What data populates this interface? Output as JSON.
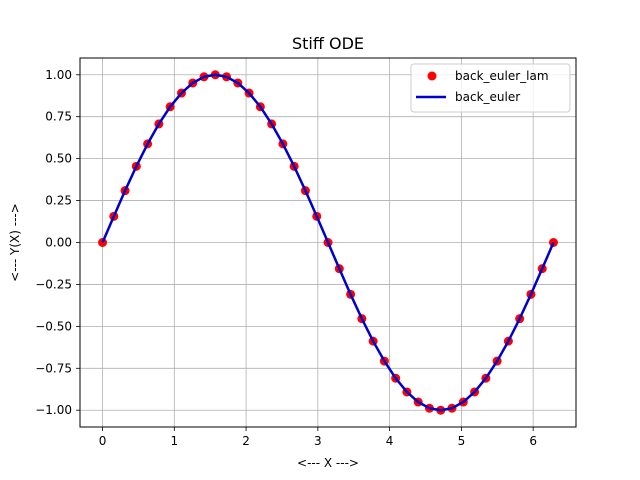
{
  "chart_data": {
    "type": "line",
    "title": "Stiff ODE",
    "xlabel": "<--- X --->",
    "ylabel": "<--- Y(X) --->",
    "xlim": [
      -0.314,
      6.597
    ],
    "ylim": [
      -1.1,
      1.1
    ],
    "xticks": [
      0,
      1,
      2,
      3,
      4,
      5,
      6
    ],
    "xtick_labels": [
      "0",
      "1",
      "2",
      "3",
      "4",
      "5",
      "6"
    ],
    "yticks": [
      -1.0,
      -0.75,
      -0.5,
      -0.25,
      0.0,
      0.25,
      0.5,
      0.75,
      1.0
    ],
    "ytick_labels": [
      "−1.00",
      "−0.75",
      "−0.50",
      "−0.25",
      "0.00",
      "0.25",
      "0.50",
      "0.75",
      "1.00"
    ],
    "grid": true,
    "legend_position": "top-right",
    "x": [
      0.0,
      0.157,
      0.314,
      0.471,
      0.628,
      0.785,
      0.942,
      1.1,
      1.257,
      1.414,
      1.571,
      1.728,
      1.885,
      2.042,
      2.199,
      2.356,
      2.513,
      2.67,
      2.827,
      2.985,
      3.142,
      3.299,
      3.456,
      3.613,
      3.77,
      3.927,
      4.084,
      4.241,
      4.398,
      4.555,
      4.712,
      4.869,
      5.027,
      5.184,
      5.341,
      5.498,
      5.655,
      5.812,
      5.969,
      6.126,
      6.283
    ],
    "series": [
      {
        "name": "back_euler_lam",
        "style": "markers",
        "color": "#ff0000",
        "values": [
          0.0,
          0.156,
          0.309,
          0.454,
          0.588,
          0.707,
          0.809,
          0.891,
          0.951,
          0.988,
          1.0,
          0.988,
          0.951,
          0.891,
          0.809,
          0.707,
          0.588,
          0.454,
          0.309,
          0.156,
          0.0,
          -0.156,
          -0.309,
          -0.454,
          -0.588,
          -0.707,
          -0.809,
          -0.891,
          -0.951,
          -0.988,
          -1.0,
          -0.988,
          -0.951,
          -0.891,
          -0.809,
          -0.707,
          -0.588,
          -0.454,
          -0.309,
          -0.156,
          0.0
        ]
      },
      {
        "name": "back_euler",
        "style": "line",
        "color": "#0000cc",
        "values": [
          0.0,
          0.156,
          0.309,
          0.454,
          0.588,
          0.707,
          0.809,
          0.891,
          0.951,
          0.988,
          1.0,
          0.988,
          0.951,
          0.891,
          0.809,
          0.707,
          0.588,
          0.454,
          0.309,
          0.156,
          0.0,
          -0.156,
          -0.309,
          -0.454,
          -0.588,
          -0.707,
          -0.809,
          -0.891,
          -0.951,
          -0.988,
          -1.0,
          -0.988,
          -0.951,
          -0.891,
          -0.809,
          -0.707,
          -0.588,
          -0.454,
          -0.309,
          -0.156,
          0.0
        ]
      }
    ]
  }
}
